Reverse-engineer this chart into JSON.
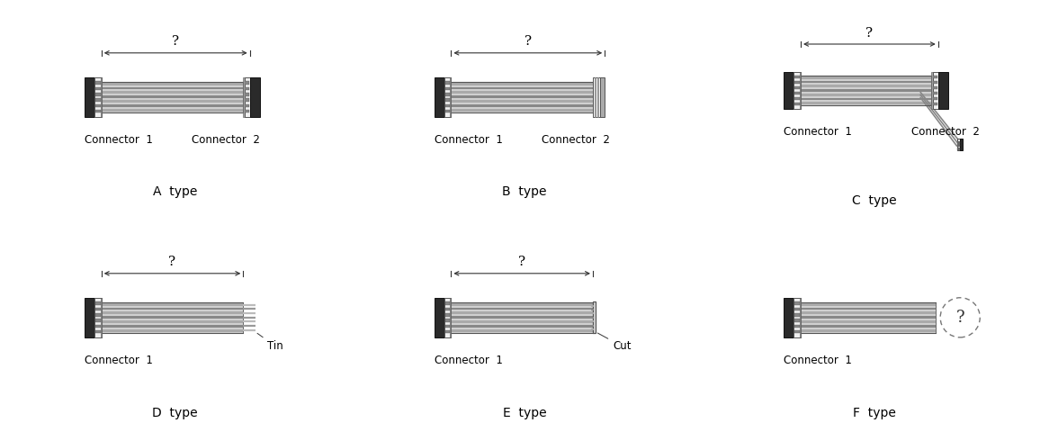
{
  "bg_color": "#ffffff",
  "connector_black": "#2a2a2a",
  "connector_white_face": "#f0f0f0",
  "connector_gray": "#999999",
  "wire_dark": "#888888",
  "wire_light": "#cccccc",
  "wire_bg": "#bbbbbb",
  "panel_titles": [
    "A  type",
    "B  type",
    "C  type",
    "D  type",
    "E  type",
    "F  type"
  ],
  "conn1_labels": [
    "Connector  1",
    "Connector  1",
    "Connector  1",
    "Connector  1",
    "Connector  1",
    "Connector  1"
  ],
  "conn2_labels": [
    "Connector  2",
    "Connector  2",
    "Connector  2",
    "",
    "",
    ""
  ],
  "font_size_label": 8.5,
  "font_size_title": 10,
  "font_size_q": 11,
  "font_size_annot": 8.5
}
